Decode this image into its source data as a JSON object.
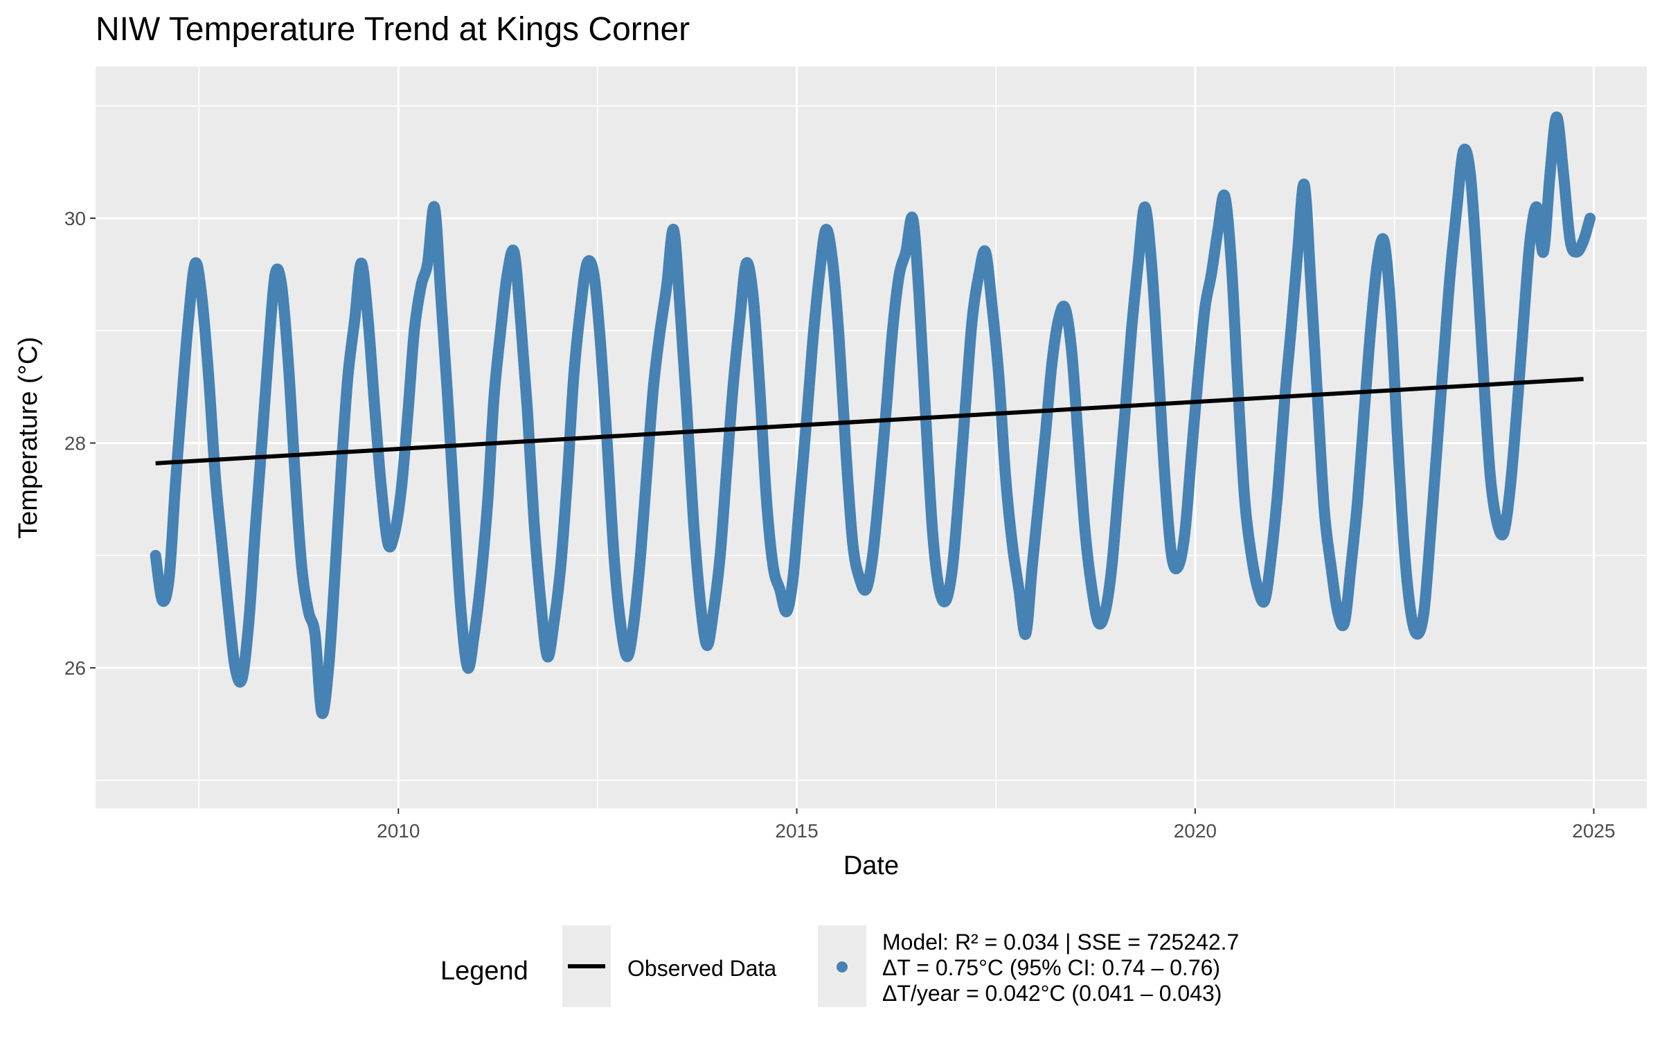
{
  "chart_data": {
    "type": "line",
    "title": "NIW Temperature Trend at Kings Corner",
    "xlabel": "Date",
    "ylabel": "Temperature (°C)",
    "x_ticks": [
      "2010",
      "2015",
      "2020",
      "2025"
    ],
    "y_ticks": [
      "26",
      "28",
      "30"
    ],
    "xlim": [
      "2006-03-15",
      "2025-09-01"
    ],
    "ylim": [
      24.75,
      31.35
    ],
    "grid": true,
    "legend_position": "bottom",
    "legend": {
      "title": "Legend",
      "entries": [
        {
          "key": "line",
          "label": "Observed Data"
        },
        {
          "key": "point",
          "label": "Model: R² = 0.034 | SSE = 725242.7\nΔT = 0.75°C (95% CI: 0.74 – 0.76)\nΔT/year = 0.042°C (0.041 – 0.043)"
        }
      ]
    },
    "colors": {
      "observed": "#4682B4",
      "trend": "#000000",
      "panel": "#EBEBEB",
      "grid": "#FFFFFF"
    },
    "series": [
      {
        "type": "line",
        "x": [
          "2006-12-15",
          "2007-01-15",
          "2007-02-15",
          "2007-03-15",
          "2007-04-15",
          "2007-05-15",
          "2007-06-15",
          "2007-07-15",
          "2007-08-15",
          "2007-09-15",
          "2007-10-15",
          "2007-11-15",
          "2007-12-15",
          "2008-01-15",
          "2008-02-15",
          "2008-03-15",
          "2008-04-15",
          "2008-05-15",
          "2008-06-15",
          "2008-07-15",
          "2008-08-15",
          "2008-09-15",
          "2008-10-15",
          "2008-11-15",
          "2008-12-15",
          "2009-01-15",
          "2009-02-15",
          "2009-03-15",
          "2009-04-15",
          "2009-05-15",
          "2009-06-15",
          "2009-07-15",
          "2009-08-15",
          "2009-09-15",
          "2009-10-15",
          "2009-11-15",
          "2009-12-15",
          "2010-01-15",
          "2010-02-15",
          "2010-03-15",
          "2010-04-15",
          "2010-05-15",
          "2010-06-15",
          "2010-07-15",
          "2010-08-15",
          "2010-09-15",
          "2010-10-15",
          "2010-11-15",
          "2010-12-15",
          "2011-01-15",
          "2011-02-15",
          "2011-03-15",
          "2011-04-15",
          "2011-05-15",
          "2011-06-15",
          "2011-07-15",
          "2011-08-15",
          "2011-09-15",
          "2011-10-15",
          "2011-11-15",
          "2011-12-15",
          "2012-01-15",
          "2012-02-15",
          "2012-03-15",
          "2012-04-15",
          "2012-05-15",
          "2012-06-15",
          "2012-07-15",
          "2012-08-15",
          "2012-09-15",
          "2012-10-15",
          "2012-11-15",
          "2012-12-15",
          "2013-01-15",
          "2013-02-15",
          "2013-03-15",
          "2013-04-15",
          "2013-05-15",
          "2013-06-15",
          "2013-07-15",
          "2013-08-15",
          "2013-09-15",
          "2013-10-15",
          "2013-11-15",
          "2013-12-15",
          "2014-01-15",
          "2014-02-15",
          "2014-03-15",
          "2014-04-15",
          "2014-05-15",
          "2014-06-15",
          "2014-07-15",
          "2014-08-15",
          "2014-09-15",
          "2014-10-15",
          "2014-11-15",
          "2014-12-15",
          "2015-01-15",
          "2015-02-15",
          "2015-03-15",
          "2015-04-15",
          "2015-05-15",
          "2015-06-15",
          "2015-07-15",
          "2015-08-15",
          "2015-09-15",
          "2015-10-15",
          "2015-11-15",
          "2015-12-15",
          "2016-01-15",
          "2016-02-15",
          "2016-03-15",
          "2016-04-15",
          "2016-05-15",
          "2016-06-15",
          "2016-07-15",
          "2016-08-15",
          "2016-09-15",
          "2016-10-15",
          "2016-11-15",
          "2016-12-15",
          "2017-01-15",
          "2017-02-15",
          "2017-03-15",
          "2017-04-15",
          "2017-05-15",
          "2017-06-15",
          "2017-07-15",
          "2017-08-15",
          "2017-09-15",
          "2017-10-15",
          "2017-11-15",
          "2017-12-15",
          "2018-01-15",
          "2018-02-15",
          "2018-03-15",
          "2018-04-15",
          "2018-05-15",
          "2018-06-15",
          "2018-07-15",
          "2018-08-15",
          "2018-09-15",
          "2018-10-15",
          "2018-11-15",
          "2018-12-15",
          "2019-01-15",
          "2019-02-15",
          "2019-03-15",
          "2019-04-15",
          "2019-05-15",
          "2019-06-15",
          "2019-07-15",
          "2019-08-15",
          "2019-09-15",
          "2019-10-15",
          "2019-11-15",
          "2019-12-15",
          "2020-01-15",
          "2020-02-15",
          "2020-03-15",
          "2020-04-15",
          "2020-05-15",
          "2020-06-15",
          "2020-07-15",
          "2020-08-15",
          "2020-09-15",
          "2020-10-15",
          "2020-11-15",
          "2020-12-15",
          "2021-01-15",
          "2021-02-15",
          "2021-03-15",
          "2021-04-15",
          "2021-05-15",
          "2021-06-15",
          "2021-07-15",
          "2021-08-15",
          "2021-09-15",
          "2021-10-15",
          "2021-11-15",
          "2021-12-15",
          "2022-01-15",
          "2022-02-15",
          "2022-03-15",
          "2022-04-15",
          "2022-05-15",
          "2022-06-15",
          "2022-07-15",
          "2022-08-15",
          "2022-09-15",
          "2022-10-15",
          "2022-11-15",
          "2022-12-15",
          "2023-01-15",
          "2023-02-15",
          "2023-03-15",
          "2023-04-15",
          "2023-05-15",
          "2023-06-15",
          "2023-07-15",
          "2023-08-15",
          "2023-09-15",
          "2023-10-15",
          "2023-11-15",
          "2023-12-15",
          "2024-01-15",
          "2024-02-15",
          "2024-03-15",
          "2024-04-15",
          "2024-05-15",
          "2024-06-15",
          "2024-07-15",
          "2024-08-15",
          "2024-09-15",
          "2024-10-15",
          "2024-11-15",
          "2024-12-15"
        ],
        "values": [
          27.0,
          26.6,
          26.8,
          27.6,
          28.4,
          29.1,
          29.6,
          29.3,
          28.6,
          27.7,
          27.1,
          26.5,
          26.0,
          25.9,
          26.4,
          27.2,
          28.0,
          28.8,
          29.5,
          29.4,
          28.7,
          27.7,
          26.9,
          26.5,
          26.3,
          25.6,
          26.0,
          26.8,
          27.8,
          28.6,
          29.1,
          29.6,
          29.1,
          28.3,
          27.6,
          27.1,
          27.2,
          27.6,
          28.3,
          29.0,
          29.4,
          29.6,
          30.1,
          29.3,
          28.4,
          27.4,
          26.5,
          26.0,
          26.3,
          26.8,
          27.5,
          28.4,
          29.0,
          29.5,
          29.7,
          29.1,
          28.3,
          27.3,
          26.6,
          26.1,
          26.4,
          26.9,
          27.7,
          28.6,
          29.2,
          29.6,
          29.5,
          28.9,
          28.0,
          27.0,
          26.4,
          26.1,
          26.4,
          27.0,
          27.8,
          28.5,
          29.0,
          29.4,
          29.9,
          29.2,
          28.3,
          27.3,
          26.6,
          26.2,
          26.5,
          27.0,
          27.8,
          28.5,
          29.1,
          29.6,
          29.3,
          28.5,
          27.5,
          26.9,
          26.7,
          26.5,
          26.8,
          27.5,
          28.2,
          28.9,
          29.5,
          29.9,
          29.6,
          28.9,
          27.9,
          27.1,
          26.8,
          26.7,
          27.0,
          27.6,
          28.3,
          29.0,
          29.5,
          29.7,
          30.0,
          29.3,
          28.2,
          27.2,
          26.7,
          26.6,
          26.9,
          27.6,
          28.4,
          29.1,
          29.5,
          29.7,
          29.2,
          28.6,
          27.7,
          27.1,
          26.7,
          26.3,
          26.9,
          27.5,
          28.1,
          28.7,
          29.1,
          29.2,
          28.8,
          28.0,
          27.2,
          26.7,
          26.4,
          26.5,
          26.9,
          27.6,
          28.3,
          29.0,
          29.6,
          30.1,
          29.6,
          28.7,
          27.7,
          27.0,
          26.9,
          27.2,
          27.9,
          28.6,
          29.2,
          29.5,
          29.9,
          30.2,
          29.6,
          28.5,
          27.5,
          27.0,
          26.7,
          26.6,
          27.0,
          27.6,
          28.4,
          29.0,
          29.7,
          30.3,
          29.4,
          28.4,
          27.4,
          26.9,
          26.5,
          26.4,
          26.9,
          27.5,
          28.3,
          29.0,
          29.6,
          29.8,
          29.2,
          28.1,
          27.1,
          26.5,
          26.3,
          26.5,
          27.2,
          28.0,
          28.8,
          29.5,
          30.1,
          30.6,
          30.4,
          29.6,
          28.6,
          27.7,
          27.3,
          27.2,
          27.6,
          28.3,
          29.1,
          29.8,
          30.1,
          29.7,
          30.4,
          30.9,
          30.4,
          29.8,
          29.7,
          29.8,
          30.0
        ]
      },
      {
        "type": "line",
        "x": [
          "2006-12-15",
          "2024-11-15"
        ],
        "values": [
          27.82,
          28.57
        ]
      }
    ]
  }
}
